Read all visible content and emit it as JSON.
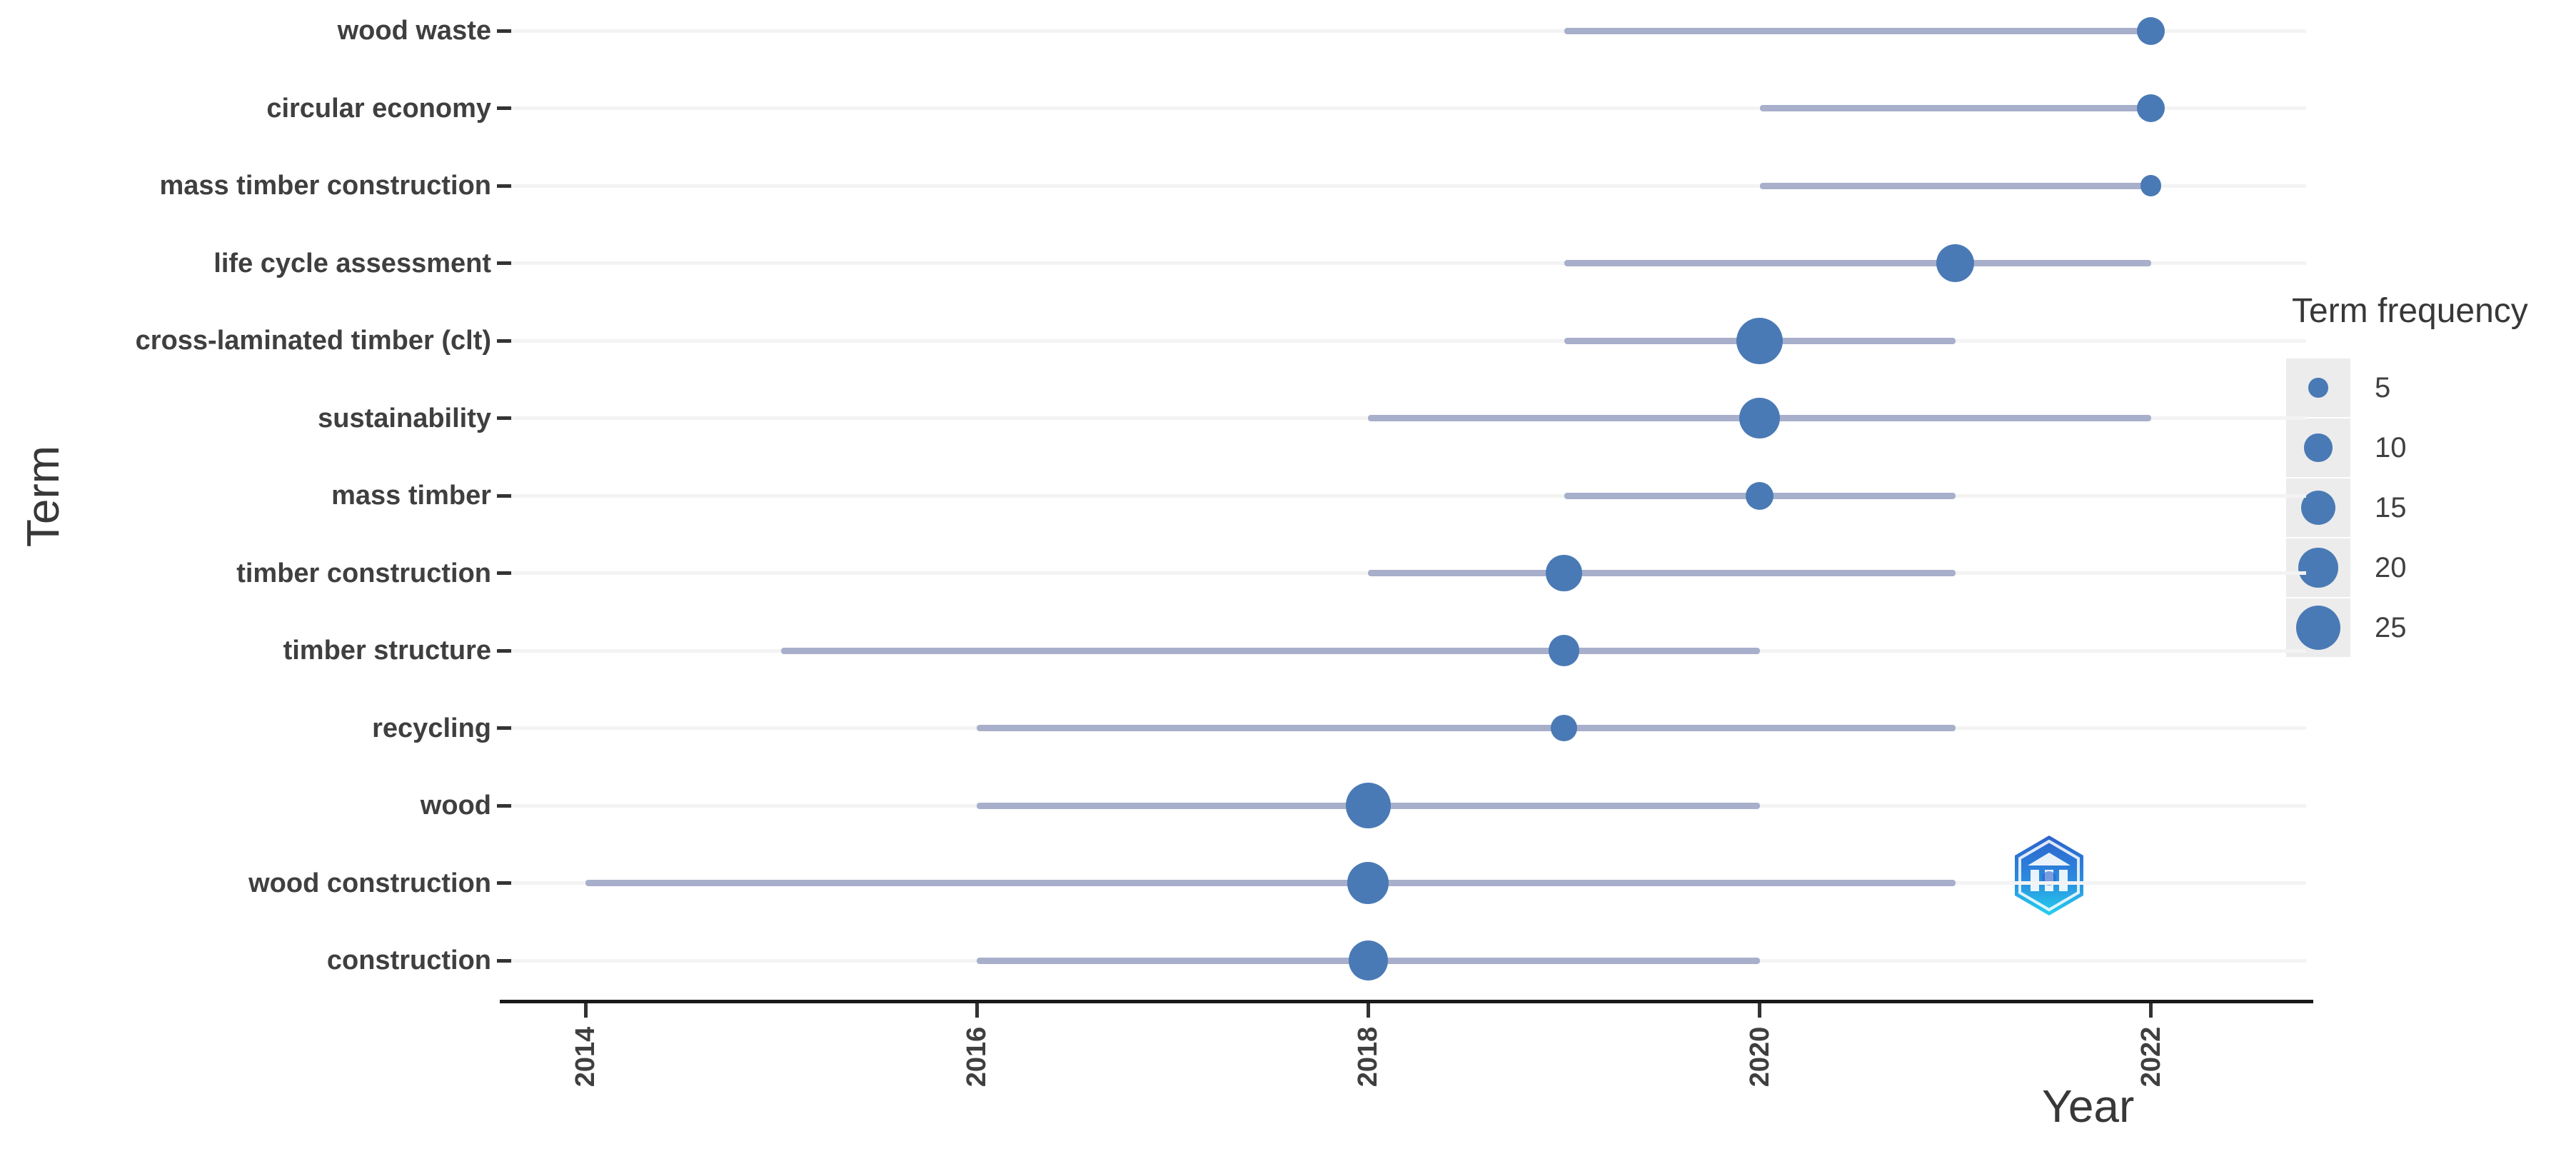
{
  "axes": {
    "x_title": "Year",
    "y_title": "Term",
    "x_ticks": [
      "2014",
      "2016",
      "2018",
      "2020",
      "2022"
    ]
  },
  "legend": {
    "title": "Term frequency",
    "items": [
      "5",
      "10",
      "15",
      "20",
      "25"
    ]
  },
  "colors": {
    "dot": "#4a7ab5",
    "range_line": "#a8afcb",
    "gridline": "#f3f3f3",
    "axis": "#1a1a1a",
    "text": "#3f3f3f",
    "legend_key_bg": "#ececec",
    "logo_blue": "#2d62cc",
    "logo_cyan": "#25d1ee"
  },
  "watermark": {
    "icon": "hexagon-building-logo"
  },
  "chart_data": {
    "type": "scatter",
    "subtype": "dot-range-trend-topics",
    "title": "",
    "xlabel": "Year",
    "ylabel": "Term",
    "xlim": [
      2013.6,
      2022.8
    ],
    "x_ticks": [
      2014,
      2016,
      2018,
      2020,
      2022
    ],
    "grid": "horizontal-only",
    "legend_position": "right",
    "size_legend": {
      "title": "Term frequency",
      "values": [
        5,
        10,
        15,
        20,
        25
      ]
    },
    "rows": [
      {
        "term": "wood waste",
        "year_start": 2019,
        "year_end": 2022,
        "year_peak": 2022,
        "frequency": 9
      },
      {
        "term": "circular economy",
        "year_start": 2020,
        "year_end": 2022,
        "year_peak": 2022,
        "frequency": 9
      },
      {
        "term": "mass timber construction",
        "year_start": 2020,
        "year_end": 2022,
        "year_peak": 2022,
        "frequency": 5
      },
      {
        "term": "life cycle assessment",
        "year_start": 2019,
        "year_end": 2022,
        "year_peak": 2021,
        "frequency": 17
      },
      {
        "term": "cross-laminated timber (clt)",
        "year_start": 2019,
        "year_end": 2021,
        "year_peak": 2020,
        "frequency": 25
      },
      {
        "term": "sustainability",
        "year_start": 2018,
        "year_end": 2022,
        "year_peak": 2020,
        "frequency": 19
      },
      {
        "term": "mass timber",
        "year_start": 2019,
        "year_end": 2021,
        "year_peak": 2020,
        "frequency": 9
      },
      {
        "term": "timber construction",
        "year_start": 2018,
        "year_end": 2021,
        "year_peak": 2019,
        "frequency": 15
      },
      {
        "term": "timber structure",
        "year_start": 2015,
        "year_end": 2020,
        "year_peak": 2019,
        "frequency": 11
      },
      {
        "term": "recycling",
        "year_start": 2016,
        "year_end": 2021,
        "year_peak": 2019,
        "frequency": 8
      },
      {
        "term": "wood",
        "year_start": 2016,
        "year_end": 2020,
        "year_peak": 2018,
        "frequency": 24
      },
      {
        "term": "wood construction",
        "year_start": 2014,
        "year_end": 2021,
        "year_peak": 2018,
        "frequency": 20
      },
      {
        "term": "construction",
        "year_start": 2016,
        "year_end": 2020,
        "year_peak": 2018,
        "frequency": 18
      }
    ]
  }
}
